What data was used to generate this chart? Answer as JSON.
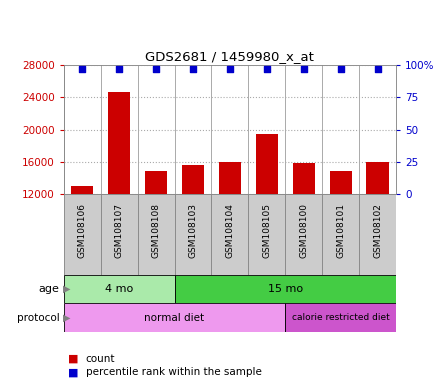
{
  "title": "GDS2681 / 1459980_x_at",
  "samples": [
    "GSM108106",
    "GSM108107",
    "GSM108108",
    "GSM108103",
    "GSM108104",
    "GSM108105",
    "GSM108100",
    "GSM108101",
    "GSM108102"
  ],
  "counts": [
    13000,
    24700,
    14800,
    15600,
    16000,
    19500,
    15800,
    14800,
    16000
  ],
  "pct_ranks": [
    97,
    97,
    97,
    97,
    97,
    97,
    97,
    97,
    97
  ],
  "ylim_left": [
    12000,
    28000
  ],
  "ylim_right": [
    0,
    100
  ],
  "yticks_left": [
    12000,
    16000,
    20000,
    24000,
    28000
  ],
  "yticks_right": [
    0,
    25,
    50,
    75,
    100
  ],
  "bar_color": "#cc0000",
  "dot_color": "#0000cc",
  "age_groups": [
    {
      "label": "4 mo",
      "start": 0,
      "end": 3,
      "color": "#aaeaaa"
    },
    {
      "label": "15 mo",
      "start": 3,
      "end": 9,
      "color": "#44cc44"
    }
  ],
  "protocol_groups": [
    {
      "label": "normal diet",
      "start": 0,
      "end": 6,
      "color": "#ee99ee"
    },
    {
      "label": "calorie restricted diet",
      "start": 6,
      "end": 9,
      "color": "#cc55cc"
    }
  ],
  "sample_box_color": "#cccccc",
  "sample_box_edge": "#888888",
  "grid_color": "#aaaaaa",
  "vline_color": "#888888",
  "legend_count_color": "#cc0000",
  "legend_pct_color": "#0000cc"
}
